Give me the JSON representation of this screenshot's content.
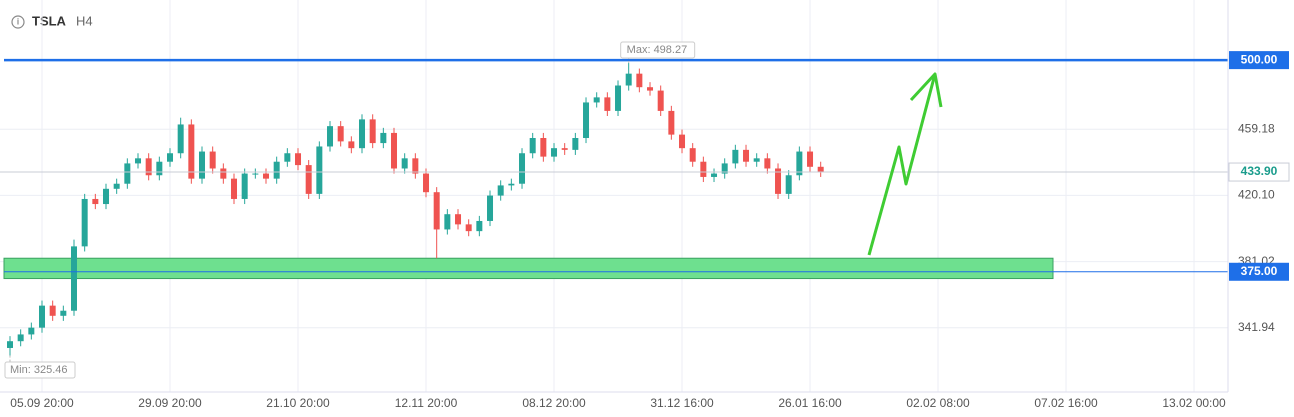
{
  "chart_data": {
    "type": "candlestick",
    "symbol": "TSLA",
    "timeframe": "H4",
    "categories": [
      null,
      null,
      null,
      "05.09 20:00",
      null,
      null,
      null,
      null,
      null,
      null,
      null,
      null,
      null,
      null,
      null,
      "29.09 20:00",
      null,
      null,
      null,
      null,
      null,
      null,
      null,
      null,
      null,
      null,
      null,
      "21.10 20:00",
      null,
      null,
      null,
      null,
      null,
      null,
      null,
      null,
      null,
      null,
      null,
      "12.11 20:00",
      null,
      null,
      null,
      null,
      null,
      null,
      null,
      null,
      null,
      null,
      null,
      "08.12 20:00",
      null,
      null,
      null,
      null,
      null,
      null,
      null,
      null,
      null,
      null,
      null,
      "31.12 16:00",
      null,
      null,
      null,
      null,
      null,
      null,
      null,
      null,
      null,
      null,
      null,
      "26.01 16:00",
      null,
      null,
      null,
      null,
      null,
      null,
      null,
      null,
      null,
      null,
      null,
      "02.02 08:00",
      null,
      null,
      null,
      null,
      null,
      null,
      null,
      null,
      null,
      null,
      null,
      "07.02 16:00",
      null,
      null,
      null,
      null,
      null,
      null,
      null,
      null,
      null,
      null,
      null,
      "13.02 00:00",
      null,
      null,
      null
    ],
    "open": [
      330,
      334,
      338,
      342,
      355,
      349,
      352,
      390,
      418,
      415,
      424,
      427,
      439,
      442,
      432,
      440,
      445,
      462,
      430,
      446,
      436,
      430,
      418,
      433,
      433,
      430,
      440,
      445,
      438,
      421,
      449,
      461,
      452,
      448,
      465,
      451,
      457,
      436,
      442,
      433,
      422,
      400,
      409,
      403,
      399,
      405,
      420,
      426,
      427,
      445,
      454,
      443,
      448,
      447,
      454,
      475,
      478,
      470,
      485,
      492,
      484,
      482,
      470,
      456,
      448,
      440,
      431,
      433,
      439,
      447,
      440,
      442,
      436,
      421,
      432,
      446,
      437,
      null,
      null,
      null,
      null,
      null,
      null,
      null,
      null,
      null,
      null,
      null,
      null,
      null,
      null,
      null,
      null,
      null,
      null,
      null,
      null,
      null,
      null,
      null,
      null,
      null,
      null,
      null,
      null,
      null,
      null,
      null,
      null,
      null,
      null,
      null,
      null,
      null,
      null
    ],
    "high": [
      337,
      341,
      345,
      358,
      358,
      355,
      394,
      421,
      421,
      427,
      430,
      442,
      445,
      445,
      443,
      448,
      466,
      465,
      449,
      449,
      439,
      433,
      436,
      436,
      436,
      443,
      448,
      448,
      441,
      452,
      464,
      464,
      455,
      468,
      468,
      460,
      460,
      445,
      445,
      436,
      425,
      412,
      412,
      406,
      408,
      423,
      429,
      430,
      448,
      457,
      457,
      451,
      451,
      457,
      478,
      481,
      481,
      488,
      498.27,
      495,
      487,
      485,
      473,
      459,
      451,
      443,
      436,
      442,
      450,
      450,
      445,
      445,
      439,
      435,
      449,
      449,
      440,
      null,
      null,
      null,
      null,
      null,
      null,
      null,
      null,
      null,
      null,
      null,
      null,
      null,
      null,
      null,
      null,
      null,
      null,
      null,
      null,
      null,
      null,
      null,
      null,
      null,
      null,
      null,
      null,
      null,
      null,
      null,
      null,
      null,
      null,
      null,
      null,
      null,
      null
    ],
    "low": [
      325.46,
      331,
      335,
      339,
      346,
      346,
      349,
      387,
      412,
      412,
      421,
      424,
      436,
      429,
      429,
      437,
      442,
      427,
      427,
      433,
      427,
      415,
      415,
      430,
      427,
      427,
      437,
      435,
      418,
      418,
      446,
      449,
      445,
      445,
      448,
      448,
      433,
      433,
      430,
      419,
      383,
      397,
      400,
      396,
      396,
      402,
      417,
      423,
      424,
      442,
      440,
      440,
      444,
      444,
      451,
      472,
      467,
      467,
      482,
      481,
      479,
      467,
      453,
      445,
      437,
      428,
      428,
      430,
      436,
      437,
      437,
      433,
      418,
      418,
      429,
      434,
      431,
      null,
      null,
      null,
      null,
      null,
      null,
      null,
      null,
      null,
      null,
      null,
      null,
      null,
      null,
      null,
      null,
      null,
      null,
      null,
      null,
      null,
      null,
      null,
      null,
      null,
      null,
      null,
      null,
      null,
      null,
      null,
      null,
      null,
      null,
      null,
      null,
      null,
      null
    ],
    "close": [
      334,
      338,
      342,
      355,
      349,
      352,
      390,
      418,
      415,
      424,
      427,
      439,
      442,
      432,
      440,
      445,
      462,
      430,
      446,
      436,
      430,
      418,
      433,
      433,
      430,
      440,
      445,
      438,
      421,
      449,
      461,
      452,
      448,
      465,
      451,
      457,
      436,
      442,
      433,
      422,
      400,
      409,
      403,
      399,
      405,
      420,
      426,
      427,
      445,
      454,
      443,
      448,
      447,
      454,
      475,
      478,
      470,
      485,
      492,
      484,
      482,
      470,
      456,
      448,
      440,
      431,
      433,
      439,
      447,
      440,
      442,
      436,
      421,
      432,
      446,
      437,
      433.9,
      null,
      null,
      null,
      null,
      null,
      null,
      null,
      null,
      null,
      null,
      null,
      null,
      null,
      null,
      null,
      null,
      null,
      null,
      null,
      null,
      null,
      null,
      null,
      null,
      null,
      null,
      null,
      null,
      null,
      null,
      null,
      null,
      null,
      null,
      null,
      null,
      null,
      null
    ],
    "up_color": "#26a69a",
    "down_color": "#ef5350",
    "ylim": [
      304,
      535.5
    ],
    "yticks": [
      341.94,
      381.02,
      {
        "value": 420.1,
        "label": "420.10"
      },
      459.18
    ],
    "grid": true,
    "levels": [
      {
        "value": 500,
        "label": "500.00"
      },
      {
        "value": 375,
        "label": "375.00"
      }
    ],
    "level_color": "#1e6fe8",
    "zone": {
      "from": 371,
      "to": 383,
      "color": "#6ee08f"
    },
    "current_price": {
      "value": 433.9,
      "label": "433.90"
    },
    "annotations": [
      "Max: 498.27",
      "Min: 325.46"
    ]
  }
}
